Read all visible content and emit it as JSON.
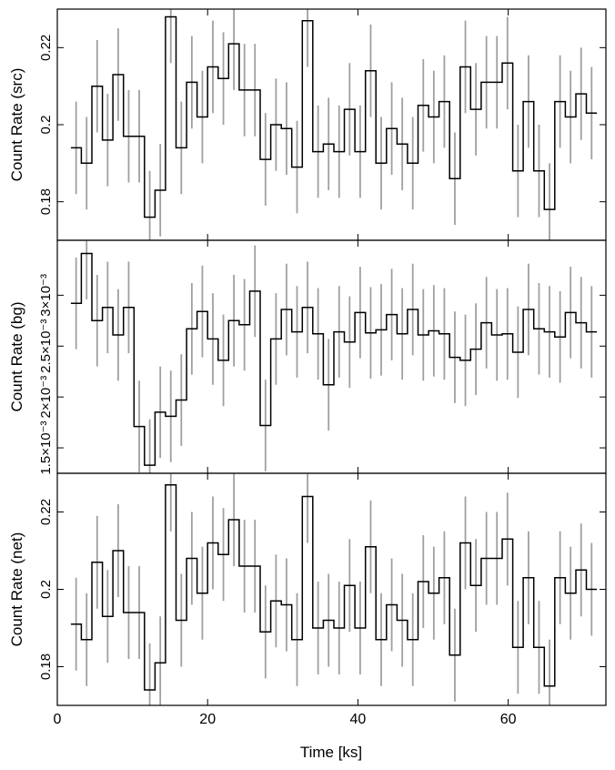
{
  "chart_data": {
    "type": "line",
    "xlabel": "Time [ks]",
    "xlim": [
      0,
      73
    ],
    "x_ticks": [
      0,
      20,
      40,
      60
    ],
    "bin_width_ks": 1.4,
    "x": [
      2.5,
      3.9,
      5.3,
      6.7,
      8.1,
      9.5,
      10.9,
      12.3,
      13.7,
      15.1,
      16.5,
      17.9,
      19.3,
      20.7,
      22.1,
      23.5,
      24.9,
      26.3,
      27.7,
      29.1,
      30.5,
      31.9,
      33.3,
      34.7,
      36.1,
      37.5,
      38.9,
      40.3,
      41.7,
      43.1,
      44.5,
      45.9,
      47.3,
      48.7,
      50.1,
      51.5,
      52.9,
      54.3,
      55.7,
      57.1,
      58.5,
      59.9,
      61.3,
      62.7,
      64.1,
      65.5,
      66.9,
      68.3,
      69.7,
      71.1
    ],
    "panels": [
      {
        "ylabel": "Count Rate (src)",
        "ylim": [
          0.17,
          0.23
        ],
        "y_ticks": [
          "0.18",
          "0.2",
          "0.22"
        ],
        "y_tick_values": [
          0.18,
          0.2,
          0.22
        ],
        "values": [
          0.194,
          0.19,
          0.21,
          0.196,
          0.213,
          0.197,
          0.197,
          0.176,
          0.183,
          0.228,
          0.194,
          0.211,
          0.202,
          0.215,
          0.212,
          0.221,
          0.209,
          0.209,
          0.191,
          0.2,
          0.199,
          0.189,
          0.227,
          0.193,
          0.195,
          0.193,
          0.204,
          0.193,
          0.214,
          0.19,
          0.199,
          0.195,
          0.19,
          0.205,
          0.202,
          0.206,
          0.186,
          0.215,
          0.204,
          0.211,
          0.211,
          0.216,
          0.188,
          0.206,
          0.188,
          0.178,
          0.206,
          0.202,
          0.208,
          0.203
        ],
        "errors": [
          0.012,
          0.012,
          0.012,
          0.012,
          0.012,
          0.012,
          0.012,
          0.012,
          0.012,
          0.012,
          0.012,
          0.012,
          0.012,
          0.012,
          0.012,
          0.012,
          0.012,
          0.012,
          0.012,
          0.012,
          0.012,
          0.012,
          0.012,
          0.012,
          0.012,
          0.012,
          0.012,
          0.012,
          0.012,
          0.012,
          0.012,
          0.012,
          0.012,
          0.012,
          0.012,
          0.012,
          0.012,
          0.012,
          0.012,
          0.012,
          0.012,
          0.012,
          0.012,
          0.012,
          0.012,
          0.012,
          0.012,
          0.012,
          0.012,
          0.012
        ]
      },
      {
        "ylabel": "Count Rate (bg)",
        "ylim": [
          0.00125,
          0.00354
        ],
        "y_ticks": [
          "1.5×10⁻³",
          "2×10⁻³",
          "2.5×10⁻³",
          "3×10⁻³"
        ],
        "y_tick_values": [
          0.0015,
          0.002,
          0.0025,
          0.003
        ],
        "values": [
          0.00292,
          0.00341,
          0.00275,
          0.00288,
          0.00261,
          0.00288,
          0.00171,
          0.00133,
          0.00185,
          0.00181,
          0.00197,
          0.00267,
          0.00284,
          0.00257,
          0.00236,
          0.00275,
          0.00271,
          0.00304,
          0.00172,
          0.00257,
          0.00286,
          0.00264,
          0.00288,
          0.00262,
          0.00212,
          0.00264,
          0.00254,
          0.00283,
          0.00263,
          0.00266,
          0.00281,
          0.00262,
          0.00286,
          0.00261,
          0.00265,
          0.00262,
          0.00239,
          0.00236,
          0.00247,
          0.00273,
          0.00261,
          0.00262,
          0.00244,
          0.00286,
          0.00267,
          0.00264,
          0.00259,
          0.00283,
          0.00273,
          0.00264
        ],
        "errors": [
          0.00045,
          0.00045,
          0.00045,
          0.00045,
          0.00045,
          0.00045,
          0.00045,
          0.00045,
          0.00045,
          0.00045,
          0.00045,
          0.00045,
          0.00045,
          0.00045,
          0.00045,
          0.00045,
          0.00045,
          0.00045,
          0.00045,
          0.00045,
          0.00045,
          0.00045,
          0.00045,
          0.00045,
          0.00045,
          0.00045,
          0.00045,
          0.00045,
          0.00045,
          0.00045,
          0.00045,
          0.00045,
          0.00045,
          0.00045,
          0.00045,
          0.00045,
          0.00045,
          0.00045,
          0.00045,
          0.00045,
          0.00045,
          0.00045,
          0.00045,
          0.00045,
          0.00045,
          0.00045,
          0.00045,
          0.00045,
          0.00045,
          0.00045
        ]
      },
      {
        "ylabel": "Count Rate (net)",
        "ylim": [
          0.17,
          0.23
        ],
        "y_ticks": [
          "0.18",
          "0.2",
          "0.22"
        ],
        "y_tick_values": [
          0.18,
          0.2,
          0.22
        ],
        "values": [
          0.191,
          0.187,
          0.207,
          0.193,
          0.21,
          0.194,
          0.194,
          0.174,
          0.181,
          0.227,
          0.192,
          0.208,
          0.199,
          0.212,
          0.209,
          0.218,
          0.206,
          0.206,
          0.189,
          0.197,
          0.196,
          0.187,
          0.224,
          0.19,
          0.192,
          0.19,
          0.201,
          0.19,
          0.211,
          0.187,
          0.196,
          0.192,
          0.187,
          0.202,
          0.199,
          0.203,
          0.183,
          0.212,
          0.201,
          0.208,
          0.208,
          0.213,
          0.185,
          0.203,
          0.185,
          0.175,
          0.203,
          0.199,
          0.205,
          0.2
        ],
        "errors": [
          0.012,
          0.012,
          0.012,
          0.012,
          0.012,
          0.012,
          0.012,
          0.012,
          0.012,
          0.012,
          0.012,
          0.012,
          0.012,
          0.012,
          0.012,
          0.012,
          0.012,
          0.012,
          0.012,
          0.012,
          0.012,
          0.012,
          0.012,
          0.012,
          0.012,
          0.012,
          0.012,
          0.012,
          0.012,
          0.012,
          0.012,
          0.012,
          0.012,
          0.012,
          0.012,
          0.012,
          0.012,
          0.012,
          0.012,
          0.012,
          0.012,
          0.012,
          0.012,
          0.012,
          0.012,
          0.012,
          0.012,
          0.012,
          0.012,
          0.012
        ]
      }
    ],
    "colors": {
      "step_line": "#000000",
      "error_bars": "#a0a0a0",
      "frame": "#000000"
    }
  }
}
